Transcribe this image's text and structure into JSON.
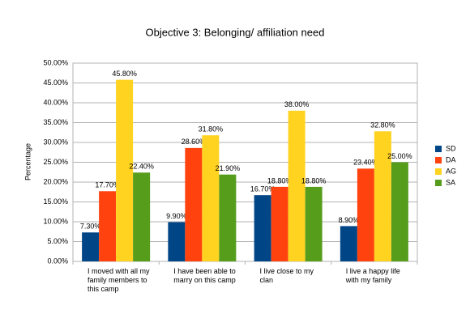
{
  "chart_data": {
    "type": "bar",
    "title": "Objective 3: Belonging/ affiliation need",
    "y_label": "Percentage",
    "categories": [
      "I moved with all my family members to this camp",
      "I have been able to marry on this camp",
      "I live close to my clan",
      "I live a happy life with my family"
    ],
    "series": [
      {
        "name": "SD",
        "color": "#004586",
        "values": [
          7.3,
          9.9,
          16.7,
          8.9
        ],
        "value_labels": [
          "7.30%",
          "9.90%",
          "16.70%",
          "8.90%"
        ]
      },
      {
        "name": "DA",
        "color": "#ff420e",
        "values": [
          17.7,
          28.6,
          18.8,
          23.4
        ],
        "value_labels": [
          "17.70%",
          "28.60%",
          "18.80%",
          "23.40%"
        ]
      },
      {
        "name": "AG",
        "color": "#ffd320",
        "values": [
          45.8,
          31.8,
          38.0,
          32.8
        ],
        "value_labels": [
          "45.80%",
          "31.80%",
          "38.00%",
          "32.80%"
        ]
      },
      {
        "name": "SA",
        "color": "#579d1c",
        "values": [
          22.4,
          21.9,
          18.8,
          25.0
        ],
        "value_labels": [
          "22.40%",
          "21.90%",
          "18.80%",
          "25.00%"
        ]
      }
    ],
    "ylim": [
      0,
      50
    ],
    "yticks": [
      {
        "value": 0,
        "label": "0.00%"
      },
      {
        "value": 5,
        "label": "5.00%"
      },
      {
        "value": 10,
        "label": "10.00%"
      },
      {
        "value": 15,
        "label": "15.00%"
      },
      {
        "value": 20,
        "label": "20.00%"
      },
      {
        "value": 25,
        "label": "25.00%"
      },
      {
        "value": 30,
        "label": "30.00%"
      },
      {
        "value": 35,
        "label": "35.00%"
      },
      {
        "value": 40,
        "label": "40.00%"
      },
      {
        "value": 45,
        "label": "45.00%"
      },
      {
        "value": 50,
        "label": "50.00%"
      }
    ],
    "grid": true,
    "legend": "right"
  }
}
